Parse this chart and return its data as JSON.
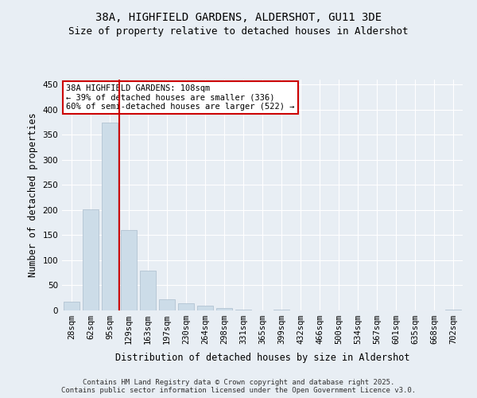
{
  "title_line1": "38A, HIGHFIELD GARDENS, ALDERSHOT, GU11 3DE",
  "title_line2": "Size of property relative to detached houses in Aldershot",
  "xlabel": "Distribution of detached houses by size in Aldershot",
  "ylabel": "Number of detached properties",
  "categories": [
    "28sqm",
    "62sqm",
    "95sqm",
    "129sqm",
    "163sqm",
    "197sqm",
    "230sqm",
    "264sqm",
    "298sqm",
    "331sqm",
    "365sqm",
    "399sqm",
    "432sqm",
    "466sqm",
    "500sqm",
    "534sqm",
    "567sqm",
    "601sqm",
    "635sqm",
    "668sqm",
    "702sqm"
  ],
  "values": [
    18,
    201,
    375,
    160,
    80,
    22,
    14,
    9,
    5,
    2,
    0,
    1,
    0,
    0,
    0,
    0,
    0,
    0,
    0,
    0,
    2
  ],
  "bar_color": "#ccdce8",
  "bar_edge_color": "#aabccc",
  "red_line_x": 2.5,
  "red_line_color": "#cc0000",
  "annotation_text": "38A HIGHFIELD GARDENS: 108sqm\n← 39% of detached houses are smaller (336)\n60% of semi-detached houses are larger (522) →",
  "annotation_box_color": "#ffffff",
  "annotation_box_edge": "#cc0000",
  "ylim": [
    0,
    460
  ],
  "yticks": [
    0,
    50,
    100,
    150,
    200,
    250,
    300,
    350,
    400,
    450
  ],
  "background_color": "#e8eef4",
  "grid_color": "#ffffff",
  "footer_line1": "Contains HM Land Registry data © Crown copyright and database right 2025.",
  "footer_line2": "Contains public sector information licensed under the Open Government Licence v3.0.",
  "title_fontsize": 10,
  "subtitle_fontsize": 9,
  "axis_label_fontsize": 8.5,
  "tick_fontsize": 7.5,
  "annotation_fontsize": 7.5,
  "footer_fontsize": 6.5
}
